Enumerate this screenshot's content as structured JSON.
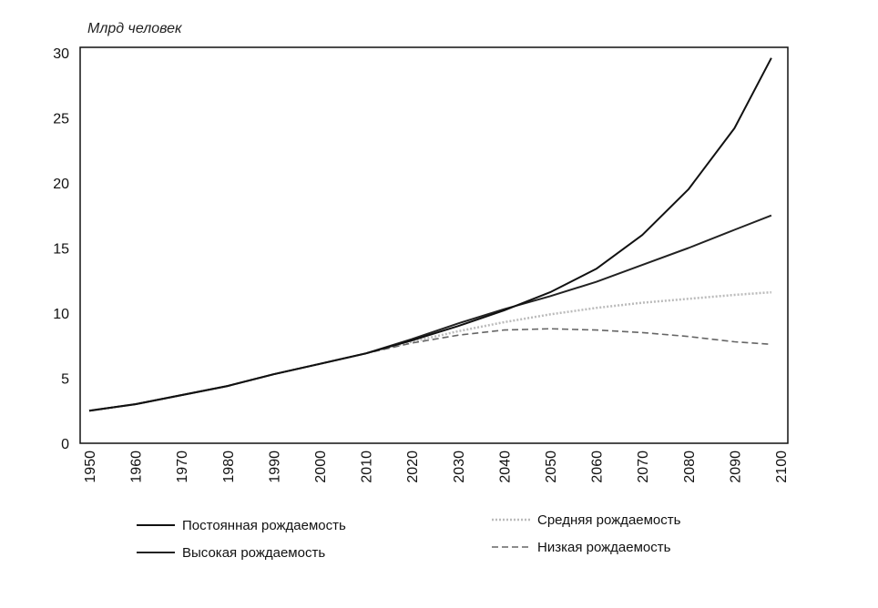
{
  "chart_data": {
    "type": "line",
    "title": "",
    "ylabel": "Млрд человек",
    "xlabel": "",
    "xlim": [
      1950,
      2100
    ],
    "ylim": [
      0,
      30
    ],
    "x_ticks": [
      "1950",
      "1960",
      "1970",
      "1980",
      "1990",
      "2000",
      "2010",
      "2020",
      "2030",
      "2040",
      "2050",
      "2060",
      "2070",
      "2080",
      "2090",
      "2100"
    ],
    "y_ticks": [
      "0",
      "5",
      "10",
      "15",
      "20",
      "25",
      "30"
    ],
    "grid": false,
    "legend_position": "bottom",
    "series": [
      {
        "name": "Постоянная рождаемость",
        "color": "#111111",
        "style": "solid",
        "x": [
          1950,
          1960,
          1970,
          1980,
          1990,
          2000,
          2010,
          2020,
          2030,
          2040,
          2050,
          2060,
          2070,
          2080,
          2090,
          2098
        ],
        "y": [
          2.5,
          3.0,
          3.7,
          4.4,
          5.3,
          6.1,
          6.9,
          7.9,
          9.0,
          10.2,
          11.6,
          13.4,
          16.0,
          19.5,
          24.2,
          29.6
        ]
      },
      {
        "name": "Высокая рождаемость",
        "color": "#222222",
        "style": "solid",
        "x": [
          1950,
          1960,
          1970,
          1980,
          1990,
          2000,
          2010,
          2020,
          2030,
          2040,
          2050,
          2060,
          2070,
          2080,
          2090,
          2098
        ],
        "y": [
          2.5,
          3.0,
          3.7,
          4.4,
          5.3,
          6.1,
          6.9,
          8.0,
          9.2,
          10.3,
          11.3,
          12.4,
          13.7,
          15.0,
          16.4,
          17.5
        ]
      },
      {
        "name": "Средняя рождаемость",
        "color": "#bbbbbb",
        "style": "dotted",
        "x": [
          1950,
          1960,
          1970,
          1980,
          1990,
          2000,
          2010,
          2020,
          2030,
          2040,
          2050,
          2060,
          2070,
          2080,
          2090,
          2098
        ],
        "y": [
          2.5,
          3.0,
          3.7,
          4.4,
          5.3,
          6.1,
          6.9,
          7.8,
          8.6,
          9.3,
          9.9,
          10.4,
          10.8,
          11.1,
          11.4,
          11.6
        ]
      },
      {
        "name": "Низкая рождаемость",
        "color": "#666666",
        "style": "dashed",
        "x": [
          1950,
          1960,
          1970,
          1980,
          1990,
          2000,
          2010,
          2020,
          2030,
          2040,
          2050,
          2060,
          2070,
          2080,
          2090,
          2098
        ],
        "y": [
          2.5,
          3.0,
          3.7,
          4.4,
          5.3,
          6.1,
          6.9,
          7.7,
          8.3,
          8.7,
          8.8,
          8.7,
          8.5,
          8.2,
          7.8,
          7.6
        ]
      }
    ]
  }
}
